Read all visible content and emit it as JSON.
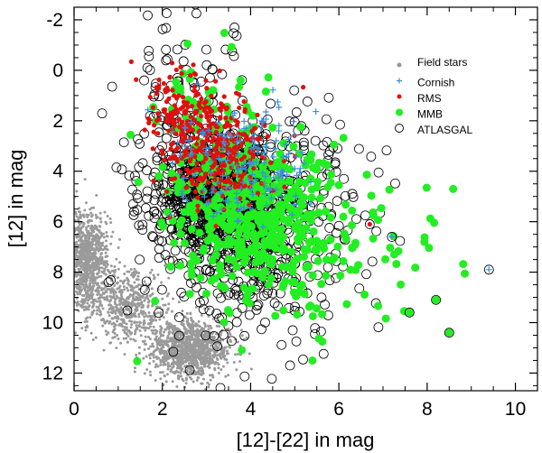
{
  "chart_data": {
    "type": "scatter",
    "title": "",
    "xlabel": "[12]-[22] in mag",
    "ylabel": "[12] in mag",
    "xlim": [
      0,
      10.5
    ],
    "ylim": [
      12.7,
      -2.5
    ],
    "x_inverted": false,
    "y_inverted": true,
    "xticks": [
      "0",
      "2",
      "4",
      "6",
      "8",
      "10"
    ],
    "yticks": [
      "-2",
      "0",
      "2",
      "4",
      "6",
      "8",
      "10",
      "12"
    ],
    "grid": false,
    "legend_position": "top-right",
    "legend": [
      {
        "label": "Field stars",
        "marker": "dot",
        "color": "#999999"
      },
      {
        "label": "Cornish",
        "marker": "plus",
        "color": "#3a8fd8"
      },
      {
        "label": "RMS",
        "marker": "dot",
        "color": "#e01010"
      },
      {
        "label": "MMB",
        "marker": "dot",
        "color": "#22ee22"
      },
      {
        "label": "ATLASGAL",
        "marker": "circle",
        "color": "#000000"
      }
    ],
    "series": [
      {
        "name": "Field stars",
        "n_points": 2600,
        "description": "dense diagonal band from ~(0.0,6.5) to ~(3.5,12.0); approximate distribution",
        "clusters": [
          {
            "x_mean": 0.3,
            "x_sd": 0.25,
            "y_mean": 7.6,
            "y_sd": 1.0,
            "weight": 0.35
          },
          {
            "x_mean": 2.6,
            "x_sd": 0.45,
            "y_mean": 11.0,
            "y_sd": 0.6,
            "weight": 0.45
          },
          {
            "x_mean": 1.2,
            "x_sd": 0.4,
            "y_mean": 9.3,
            "y_sd": 0.7,
            "weight": 0.2
          }
        ]
      },
      {
        "name": "ATLASGAL",
        "n_points": 1400,
        "description": "open circles, concentrated near (3.3,5.0), spread to x=9.5",
        "clusters": [
          {
            "x_mean": 3.3,
            "x_sd": 0.7,
            "y_mean": 5.2,
            "y_sd": 1.1,
            "weight": 0.55
          },
          {
            "x_mean": 4.2,
            "x_sd": 1.2,
            "y_mean": 6.5,
            "y_sd": 2.2,
            "weight": 0.35
          },
          {
            "x_mean": 2.5,
            "x_sd": 0.8,
            "y_mean": 2.0,
            "y_sd": 2.0,
            "weight": 0.1
          }
        ]
      },
      {
        "name": "MMB",
        "n_points": 600,
        "description": "green filled dots, centered ~(4.0,5.5), extending to x~8.8",
        "clusters": [
          {
            "x_mean": 4.0,
            "x_sd": 0.9,
            "y_mean": 5.6,
            "y_sd": 1.4,
            "weight": 0.7
          },
          {
            "x_mean": 5.6,
            "x_sd": 1.4,
            "y_mean": 7.6,
            "y_sd": 1.6,
            "weight": 0.2
          },
          {
            "x_mean": 3.0,
            "x_sd": 0.6,
            "y_mean": 1.5,
            "y_sd": 1.6,
            "weight": 0.1
          }
        ]
      },
      {
        "name": "RMS",
        "n_points": 420,
        "description": "red dots, concentrated ~(3.3,3.0), upper-left of cloud",
        "clusters": [
          {
            "x_mean": 3.3,
            "x_sd": 0.6,
            "y_mean": 3.3,
            "y_sd": 1.0,
            "weight": 0.6
          },
          {
            "x_mean": 2.6,
            "x_sd": 0.5,
            "y_mean": 1.8,
            "y_sd": 0.9,
            "weight": 0.4
          }
        ]
      },
      {
        "name": "Cornish",
        "n_points": 170,
        "description": "blue plus symbols around ~(3.8,3.5)",
        "clusters": [
          {
            "x_mean": 3.8,
            "x_sd": 0.8,
            "y_mean": 3.6,
            "y_sd": 1.2,
            "weight": 1.0
          }
        ]
      }
    ],
    "highlight_points": [
      {
        "x": 9.4,
        "y": 7.9,
        "label": "Cornish"
      },
      {
        "x": 7.2,
        "y": 6.6,
        "label": "Cornish"
      },
      {
        "x": 6.7,
        "y": 6.1,
        "label": "RMS"
      },
      {
        "x": 8.5,
        "y": 10.4,
        "label": "MMB"
      },
      {
        "x": 8.2,
        "y": 9.1,
        "label": "MMB"
      },
      {
        "x": 7.6,
        "y": 9.6,
        "label": "MMB"
      }
    ]
  }
}
